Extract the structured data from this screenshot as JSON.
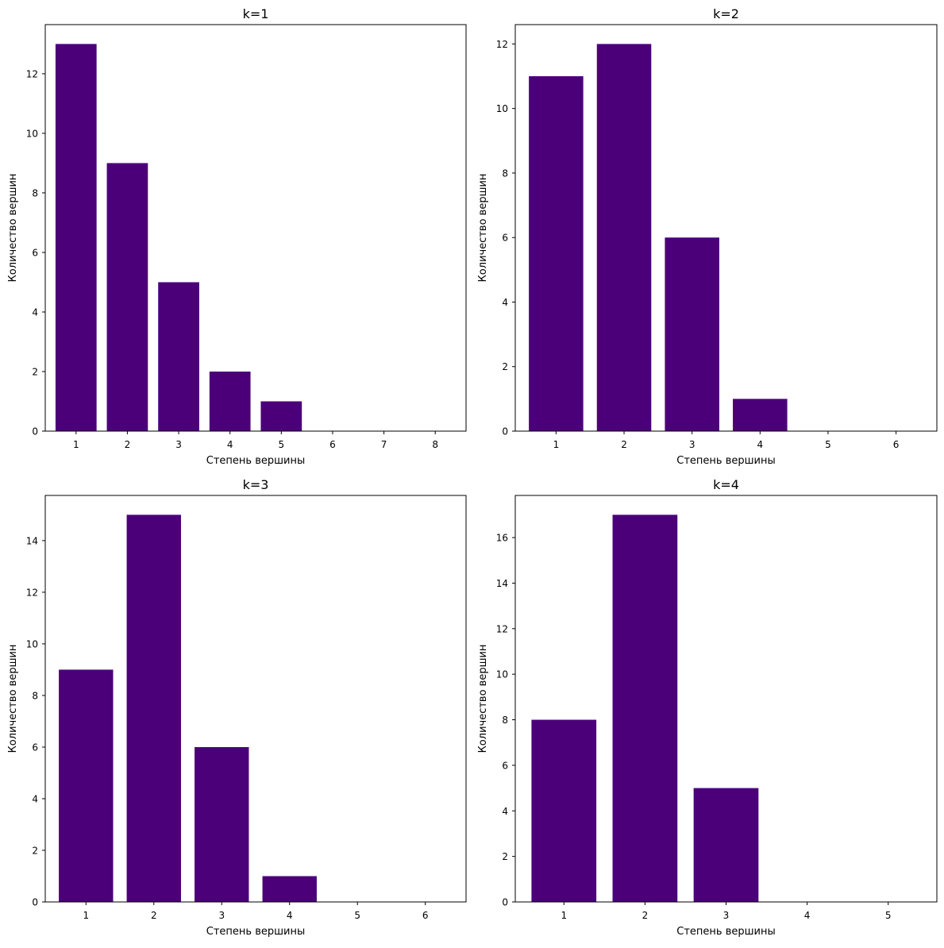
{
  "colors": {
    "bar": "#4b0079",
    "axis": "#000000",
    "background": "#ffffff"
  },
  "chart_data": [
    {
      "type": "bar",
      "title": "k=1",
      "xlabel": "Степень вершины",
      "ylabel": "Количество вершин",
      "categories": [
        "1",
        "2",
        "3",
        "4",
        "5",
        "6",
        "7",
        "8"
      ],
      "values": [
        13,
        9,
        5,
        2,
        1,
        0,
        0,
        0
      ],
      "yticks": [
        0,
        2,
        4,
        6,
        8,
        10,
        12
      ],
      "ylim": [
        0,
        13.65
      ],
      "xlim": [
        0.4,
        8.6
      ],
      "bar_width": 0.8,
      "grid": false,
      "legend": "none"
    },
    {
      "type": "bar",
      "title": "k=2",
      "xlabel": "Степень вершины",
      "ylabel": "Количество вершин",
      "categories": [
        "1",
        "2",
        "3",
        "4",
        "5",
        "6"
      ],
      "values": [
        11,
        12,
        6,
        1,
        0,
        0
      ],
      "yticks": [
        0,
        2,
        4,
        6,
        8,
        10,
        12
      ],
      "ylim": [
        0,
        12.6
      ],
      "xlim": [
        0.4,
        6.6
      ],
      "bar_width": 0.8,
      "grid": false,
      "legend": "none"
    },
    {
      "type": "bar",
      "title": "k=3",
      "xlabel": "Степень вершины",
      "ylabel": "Количество вершин",
      "categories": [
        "1",
        "2",
        "3",
        "4",
        "5",
        "6"
      ],
      "values": [
        9,
        15,
        6,
        1,
        0,
        0
      ],
      "yticks": [
        0,
        2,
        4,
        6,
        8,
        10,
        12,
        14
      ],
      "ylim": [
        0,
        15.75
      ],
      "xlim": [
        0.4,
        6.6
      ],
      "bar_width": 0.8,
      "grid": false,
      "legend": "none"
    },
    {
      "type": "bar",
      "title": "k=4",
      "xlabel": "Степень вершины",
      "ylabel": "Количество вершин",
      "categories": [
        "1",
        "2",
        "3",
        "4",
        "5"
      ],
      "values": [
        8,
        17,
        5,
        0,
        0
      ],
      "yticks": [
        0,
        2,
        4,
        6,
        8,
        10,
        12,
        14,
        16
      ],
      "ylim": [
        0,
        17.85
      ],
      "xlim": [
        0.4,
        5.6
      ],
      "bar_width": 0.8,
      "grid": false,
      "legend": "none"
    }
  ]
}
